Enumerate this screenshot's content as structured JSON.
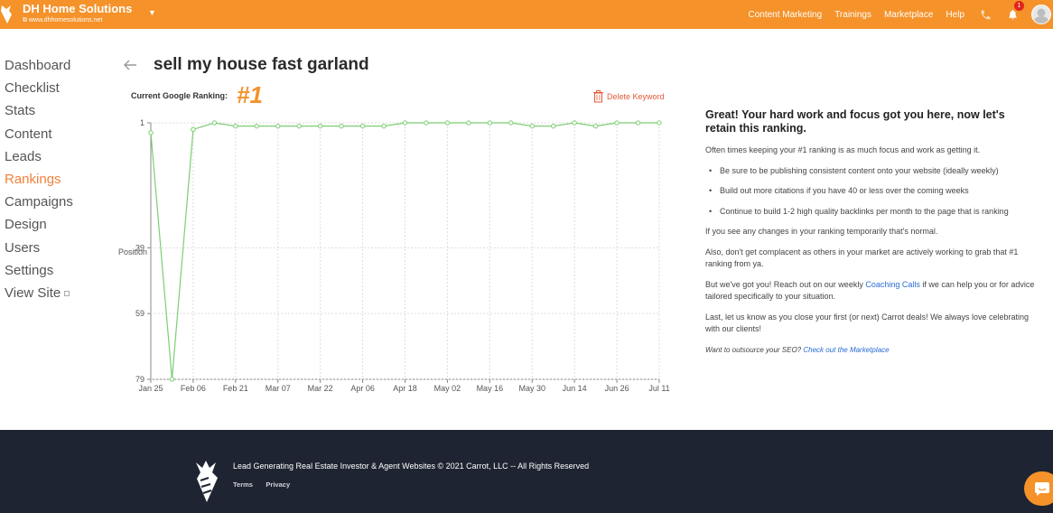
{
  "app": {
    "name": "DH Home Solutions",
    "url": "www.dhhomesolutions.net",
    "brand_color": "#f5922a"
  },
  "topnav": {
    "items": [
      "Content Marketing",
      "Trainings",
      "Marketplace",
      "Help"
    ],
    "notification_count": "1",
    "icons": [
      "phone-icon",
      "bell-icon",
      "avatar"
    ]
  },
  "sidebar": {
    "items": [
      {
        "label": "Dashboard"
      },
      {
        "label": "Checklist"
      },
      {
        "label": "Stats"
      },
      {
        "label": "Content"
      },
      {
        "label": "Leads"
      },
      {
        "label": "Rankings",
        "active": true
      },
      {
        "label": "Campaigns"
      },
      {
        "label": "Design"
      },
      {
        "label": "Users"
      },
      {
        "label": "Settings"
      },
      {
        "label": "View Site"
      }
    ]
  },
  "main": {
    "title": "sell my house fast garland",
    "rank_label": "Current Google Ranking:",
    "rank_value": "#1",
    "delete_label": "Delete Keyword"
  },
  "chart_data": {
    "type": "line",
    "ylabel": "Position",
    "y_ticks": [
      1,
      39,
      59,
      79
    ],
    "y_tick_labels": [
      "1",
      "39",
      "59",
      "79"
    ],
    "ylim": [
      1,
      79
    ],
    "y_inverted": true,
    "x_tick_labels": [
      "Jan 25",
      "Feb 06",
      "Feb 21",
      "Mar 07",
      "Mar 22",
      "Apr 06",
      "Apr 18",
      "May 02",
      "May 16",
      "May 30",
      "Jun 14",
      "Jun 26",
      "Jul 11"
    ],
    "series": [
      {
        "color": "#7ccf72",
        "values": [
          4,
          79,
          3,
          1,
          2,
          2,
          2,
          2,
          2,
          2,
          2,
          2,
          1,
          1,
          1,
          1,
          1,
          1,
          2,
          2,
          1,
          2,
          1,
          1,
          1
        ]
      }
    ],
    "grid": true
  },
  "panel": {
    "heading": "Great! Your hard work and focus got you here, now let's retain this ranking.",
    "intro": "Often times keeping your #1 ranking is as much focus and work as getting it.",
    "bullets": [
      "Be sure to be publishing consistent content onto your website (ideally weekly)",
      "Build out more citations if you have 40 or less over the coming weeks",
      "Continue to build 1-2 high quality backlinks per month to the page that is ranking"
    ],
    "p_changes": "If you see any changes in your ranking temporarily that's normal.",
    "p_complacent": "Also, don't get complacent as others in your market are actively working to grab that #1 ranking from ya.",
    "p_help_before": "But we've got you! Reach out on our weekly ",
    "p_help_link": "Coaching Calls",
    "p_help_after": " if we can help you or for advice tailored specifically to your situation.",
    "p_last": "Last, let us know as you close your first (or next) Carrot deals! We always love celebrating with our clients!",
    "outsource_text": "Want to outsource your SEO? ",
    "outsource_link": "Check out the Marketplace"
  },
  "footer": {
    "text": "Lead Generating Real Estate Investor & Agent Websites © 2021 Carrot, LLC -- All Rights Reserved",
    "links": [
      "Terms",
      "Privacy"
    ]
  }
}
